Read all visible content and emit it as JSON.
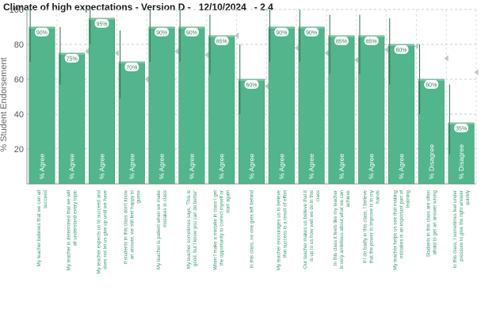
{
  "chart_data": {
    "type": "bar",
    "title": "Climate of high expectations - Version D -   12/10/2024   - 2.4",
    "ylabel": "% Student Endorsement",
    "xlabel": "",
    "ylim": [
      0,
      100
    ],
    "yticks": [
      20,
      40,
      60,
      80,
      100
    ],
    "grid": true,
    "colors": {
      "bar": "#52b58c",
      "bar_edge": "#3f9a73",
      "error": "#2f6e52",
      "marker": "#b9c9c1",
      "grid": "#cccccc"
    },
    "categories": [
      "My teacher believes that we can all succeed",
      "My teacher is determined that we will all understand every topic",
      "My teacher expects us to succeed and does not let us give up until we have",
      "If students in this class don't know an answer, we still feel happy to guess",
      "My teacher is patient when we make mistakes in class",
      "My teacher sometimes says, 'This is good, but I know you can do better'",
      "When I make a mistake in class I get the opportunity to correct myself or start again",
      "In this class, no one gets left behind",
      "My teacher encourages us to believe that success is a result of effort",
      "Our teacher makes us believe that it is up to us how well we do in this class",
      "In this class it feels like my teacher is very ambitious about what we can achieve",
      "If I do badly in this class, I believe that the power to improve is in my hands",
      "My teacher helps us see that making mistakes is an important part of learning",
      "Students in this class are often afraid to get an answer wrong",
      "In this class, I sometimes feel under pressure to give the right answer quickly"
    ],
    "series": [
      {
        "values": [
          90,
          75,
          95,
          70,
          90,
          90,
          85,
          60,
          90,
          90,
          85,
          85,
          80,
          60,
          35
        ],
        "value_labels": [
          "90%",
          "75%",
          "95%",
          "70%",
          "90%",
          "90%",
          "85%",
          "60%",
          "90%",
          "90%",
          "85%",
          "85%",
          "80%",
          "60%",
          "35%"
        ],
        "bar_labels": [
          "% Agree",
          "% Agree",
          "% Agree",
          "% Agree",
          "% Agree",
          "% Agree",
          "% Agree",
          "% Agree",
          "% Agree",
          "% Agree",
          "% Agree",
          "% Agree",
          "% Agree",
          "% Disagree",
          "% Disagree"
        ],
        "error_low": [
          70,
          57,
          80,
          49,
          70,
          70,
          63,
          40,
          70,
          70,
          63,
          63,
          57,
          40,
          17
        ],
        "error_high": [
          100,
          90,
          100,
          88,
          100,
          100,
          97,
          80,
          100,
          100,
          97,
          97,
          95,
          80,
          57
        ],
        "comparison": [
          null,
          76,
          75,
          60,
          76,
          74,
          85,
          56,
          78,
          75,
          71,
          77,
          79,
          72,
          64
        ]
      }
    ]
  }
}
